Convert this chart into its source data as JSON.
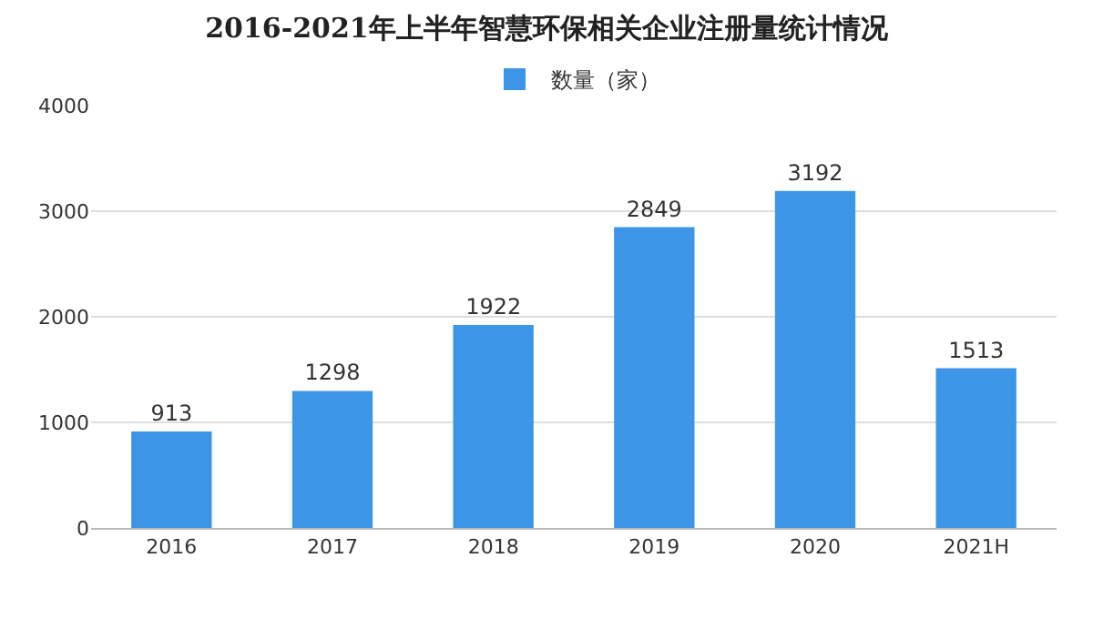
{
  "chart_data": {
    "type": "bar",
    "title": "2016-2021年上半年智慧环保相关企业注册量统计情况",
    "categories": [
      "2016",
      "2017",
      "2018",
      "2019",
      "2020",
      "2021H"
    ],
    "series": [
      {
        "name": "数量（家）",
        "color": "#3d95e8",
        "values": [
          913,
          1298,
          1922,
          2849,
          3192,
          1513
        ]
      }
    ],
    "ylim": [
      0,
      4000
    ],
    "yticks": [
      0,
      1000,
      2000,
      3000,
      4000
    ],
    "grid": "y",
    "legend": "top",
    "data_labels": true
  }
}
